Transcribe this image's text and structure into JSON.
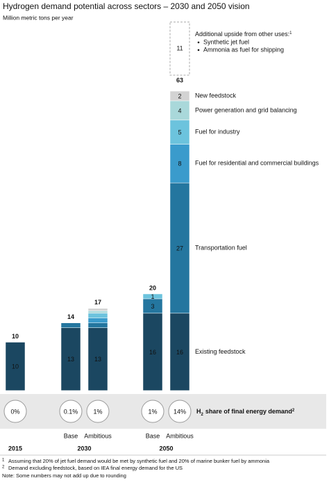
{
  "chart_data": {
    "type": "stacked-bar",
    "title": "Hydrogen demand potential across sectors – 2030 and 2050 vision",
    "subtitle": "Million metric tons per year",
    "categories": [
      null,
      "Base",
      "Ambitious",
      "Base",
      "Ambitious"
    ],
    "groups": [
      "2015",
      "2030",
      "2050"
    ],
    "series": [
      {
        "name": "Existing feedstock",
        "color": "#1b4761",
        "values": [
          10,
          13,
          13,
          16,
          16
        ],
        "value_labels": [
          "10",
          "13",
          "13",
          "16",
          "16"
        ]
      },
      {
        "name": "Transportation fuel",
        "color": "#24769f",
        "values": [
          0,
          1,
          1,
          3,
          27
        ],
        "value_labels": [
          null,
          null,
          null,
          "3",
          "27"
        ]
      },
      {
        "name": "Fuel for residential and commercial buildings",
        "color": "#3a9bcc",
        "values": [
          0,
          0,
          1,
          0,
          8
        ],
        "value_labels": [
          null,
          null,
          null,
          null,
          "8"
        ]
      },
      {
        "name": "Fuel for industry",
        "color": "#6cc3dd",
        "values": [
          0,
          0,
          1,
          1,
          5
        ],
        "value_labels": [
          null,
          null,
          null,
          "1",
          "5"
        ]
      },
      {
        "name": "Power generation and grid balancing",
        "color": "#a9d8da",
        "values": [
          0,
          0,
          0.5,
          0,
          4
        ],
        "value_labels": [
          null,
          null,
          null,
          null,
          "4"
        ]
      },
      {
        "name": "New feedstock",
        "color": "#d3d3d3",
        "values": [
          0,
          0,
          0.5,
          0,
          2
        ],
        "value_labels": [
          null,
          null,
          null,
          null,
          "2"
        ]
      }
    ],
    "totals": [
      10,
      14,
      17,
      20,
      63
    ],
    "upside": {
      "value": 11,
      "label": "Additional upside from other uses:",
      "note": "1",
      "items": [
        "Synthetic jet fuel",
        "Ammonia as fuel for shipping"
      ]
    },
    "share": {
      "label": "share of final energy demand",
      "prefix": "H",
      "sub": "2",
      "note": "2",
      "values": [
        "0%",
        "0.1%",
        "1%",
        "1%",
        "14%"
      ]
    },
    "footnotes": [
      {
        "mark": "1",
        "text": "Assuming that 20% of jet fuel demand would be met by synthetic fuel and 20% of marine bunker fuel by ammonia"
      },
      {
        "mark": "2",
        "text": "Demand excluding feedstock, based on IEA final energy demand for the US"
      }
    ],
    "note": "Note: Some numbers may not add up due to rounding"
  }
}
